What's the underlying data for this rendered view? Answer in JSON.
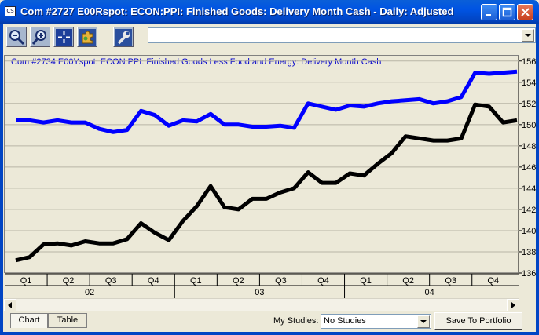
{
  "window": {
    "title": "Com #2727 E00Rspot: ECON:PPI: Finished Goods: Delivery Month Cash - Daily: Adjusted",
    "icon_text": "CS"
  },
  "toolbar": {
    "buttons": [
      {
        "icon": "zoom-out-icon"
      },
      {
        "icon": "zoom-in-icon"
      },
      {
        "icon": "crosshair-icon"
      },
      {
        "icon": "puzzle-icon"
      },
      {
        "icon": "wrench-icon"
      }
    ],
    "combo_value": ""
  },
  "chart_data": {
    "type": "line",
    "title": "Com #2734 E00Yspot: ECON:PPI: Finished Goods Less Food and Energy: Delivery Month Cash",
    "ylim": [
      136,
      156.5
    ],
    "yticks": [
      136,
      138,
      140,
      142,
      144,
      146,
      148,
      150,
      152,
      154,
      156
    ],
    "quarter_labels": [
      "Q1",
      "Q2",
      "Q3",
      "Q4",
      "Q1",
      "Q2",
      "Q3",
      "Q4",
      "Q1",
      "Q2",
      "Q3",
      "Q4"
    ],
    "year_labels": [
      "02",
      "03",
      "04"
    ],
    "x": [
      0,
      1,
      2,
      3,
      4,
      5,
      6,
      7,
      8,
      9,
      10,
      11,
      12,
      13,
      14,
      15,
      16,
      17,
      18,
      19,
      20,
      21,
      22,
      23,
      24,
      25,
      26,
      27,
      28,
      29,
      30,
      31,
      32,
      33,
      34,
      35,
      36
    ],
    "series": [
      {
        "color": "#0000ff",
        "values": [
          150.4,
          150.4,
          150.2,
          150.4,
          150.2,
          150.2,
          149.6,
          149.3,
          149.5,
          151.3,
          150.9,
          149.9,
          150.4,
          150.3,
          151.0,
          150.0,
          150.0,
          149.8,
          149.8,
          149.9,
          149.7,
          152.0,
          151.7,
          151.4,
          151.8,
          151.7,
          152.0,
          152.2,
          152.3,
          152.4,
          152.0,
          152.2,
          152.6,
          154.9,
          154.8,
          154.9,
          155.0
        ]
      },
      {
        "color": "#000000",
        "values": [
          137.2,
          137.5,
          138.7,
          138.8,
          138.6,
          139.0,
          138.8,
          138.8,
          139.2,
          140.7,
          139.8,
          139.1,
          140.9,
          142.3,
          144.2,
          142.2,
          142.0,
          143.0,
          143.0,
          143.6,
          144.0,
          145.5,
          144.5,
          144.5,
          145.4,
          145.2,
          146.3,
          147.3,
          148.9,
          148.7,
          148.5,
          148.5,
          148.7,
          151.9,
          151.7,
          150.2,
          150.4
        ]
      }
    ]
  },
  "tabs": [
    {
      "label": "Chart",
      "active": true
    },
    {
      "label": "Table",
      "active": false
    }
  ],
  "studies": {
    "label": "My Studies:",
    "value": "No Studies"
  },
  "save_button": "Save To Portfolio",
  "colors": {
    "titlebar": "#0054e3",
    "series_blue": "#0000ff",
    "series_black": "#000000",
    "chart_title": "#0000cc"
  }
}
